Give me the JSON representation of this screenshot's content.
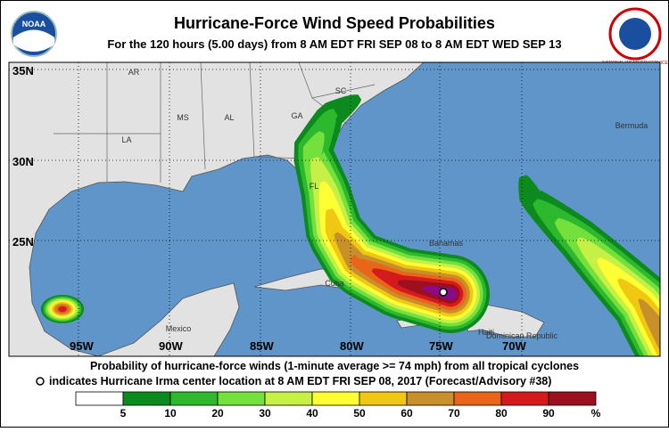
{
  "header": {
    "title": "Hurricane-Force Wind Speed Probabilities",
    "subtitle": "For the 120 hours (5.00 days) from 8 AM EDT FRI SEP 08 to 8 AM EDT WED SEP 13"
  },
  "logos": {
    "left": "NOAA",
    "right": "NATIONAL WEATHER SERVICE"
  },
  "map": {
    "lat_labels": [
      "35N",
      "30N",
      "25N"
    ],
    "lon_labels": [
      "95W",
      "90W",
      "85W",
      "80W",
      "75W",
      "70W"
    ],
    "places": [
      "AR",
      "MS",
      "AL",
      "GA",
      "SC",
      "LA",
      "FL",
      "Bermuda",
      "Bahamas",
      "Cuba",
      "Mexico",
      "Haiti",
      "Dominican Republic"
    ]
  },
  "footer": {
    "line1": "Probability of hurricane-force winds (1-minute average >= 74 mph) from all tropical cyclones",
    "line2": "indicates Hurricane Irma center location at 8 AM EDT FRI SEP 08, 2017 (Forecast/Advisory #38)"
  },
  "legend": {
    "colors": [
      "#ffffff",
      "#0c8a1e",
      "#2eb82e",
      "#74e03c",
      "#c6f046",
      "#ffff33",
      "#f0c814",
      "#c8902a",
      "#e8651a",
      "#d41a1c",
      "#9c0f1e",
      "#8a0a8a"
    ],
    "labels": [
      5,
      10,
      20,
      30,
      40,
      50,
      60,
      70,
      80,
      90,
      "%"
    ]
  }
}
